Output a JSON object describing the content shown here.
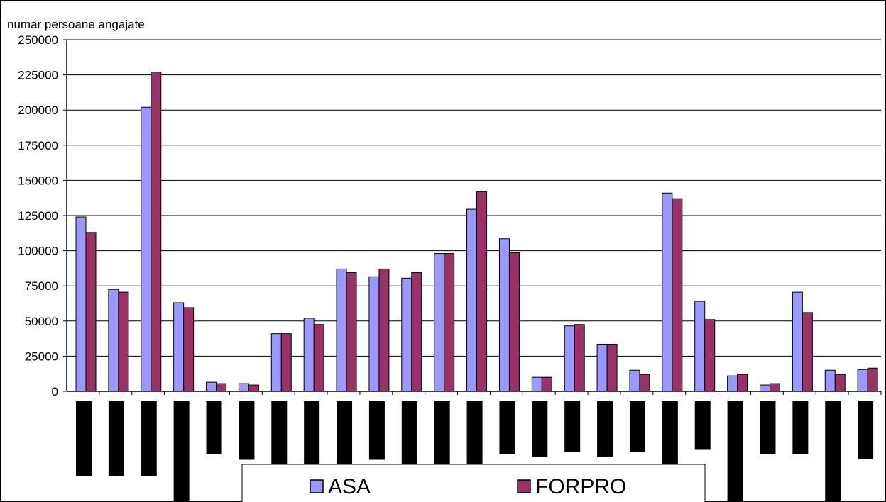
{
  "chart_data": {
    "type": "bar",
    "ylabel": "numar persoane angajate",
    "ylim": [
      0,
      250000
    ],
    "yticks": [
      0,
      25000,
      50000,
      75000,
      100000,
      125000,
      150000,
      175000,
      200000,
      225000,
      250000
    ],
    "ytick_labels": [
      "0",
      "25000",
      "50000",
      "75000",
      "100000",
      "125000",
      "150000",
      "175000",
      "200000",
      "225000",
      "250000"
    ],
    "grid": true,
    "legend_position": "bottom",
    "categories": [
      "",
      "",
      "",
      "",
      "",
      "",
      "",
      "",
      "",
      "",
      "",
      "",
      "",
      "",
      "",
      "",
      "",
      "",
      "",
      "",
      "",
      "",
      "",
      "",
      ""
    ],
    "series": [
      {
        "name": "ASA",
        "color": "#9999FF",
        "values": [
          124000,
          72500,
          202000,
          63000,
          6500,
          5500,
          41000,
          52000,
          87000,
          81500,
          80500,
          98000,
          129500,
          108500,
          10000,
          46500,
          33500,
          15000,
          141000,
          64000,
          11000,
          4500,
          70500,
          15000,
          15500
        ]
      },
      {
        "name": "FORPRO",
        "color": "#993366",
        "values": [
          113000,
          70500,
          227000,
          59500,
          5500,
          4500,
          41000,
          47500,
          84500,
          87000,
          84500,
          98000,
          142000,
          98500,
          10000,
          47500,
          33500,
          12000,
          137000,
          51000,
          12000,
          5500,
          56000,
          12000,
          16500
        ]
      }
    ],
    "category_label_blocks": [
      0.7,
      0.7,
      0.7,
      1.1,
      0.5,
      0.55,
      0.85,
      0.8,
      0.8,
      0.55,
      0.85,
      0.8,
      0.75,
      0.5,
      0.52,
      0.48,
      0.52,
      0.48,
      0.74,
      0.45,
      1.04,
      0.5,
      0.5,
      1.06,
      0.54
    ]
  }
}
